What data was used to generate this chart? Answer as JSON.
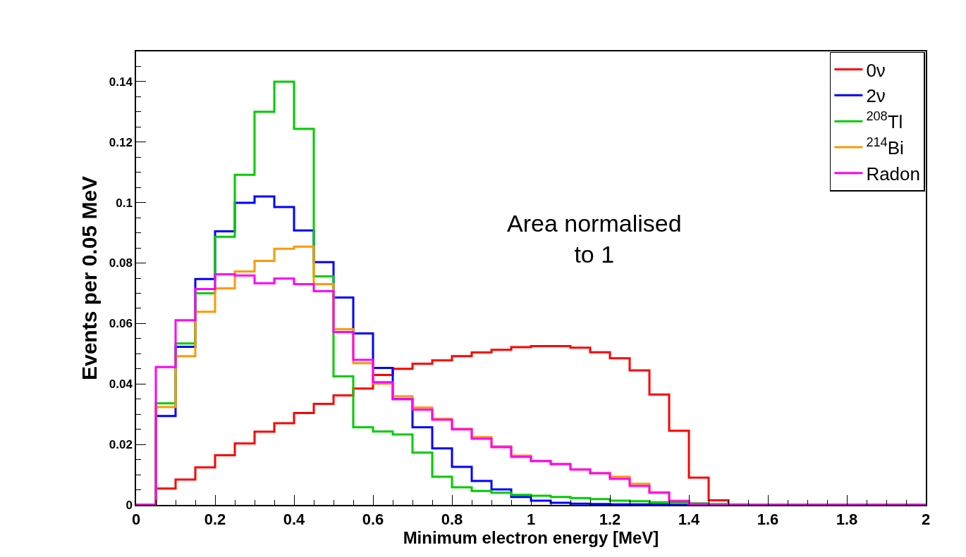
{
  "chart_data": {
    "type": "histogram",
    "xlabel": "Minimum electron energy [MeV]",
    "ylabel": "Events per 0.05 MeV",
    "annotations": [
      "Area normalised to 1"
    ],
    "bins": [
      0,
      0.05,
      0.1,
      0.15,
      0.2,
      0.25,
      0.3,
      0.35,
      0.4,
      0.45,
      0.5,
      0.55,
      0.6,
      0.65,
      0.7,
      0.75,
      0.8,
      0.85,
      0.9,
      0.95,
      1,
      1.05,
      1.1,
      1.15,
      1.2,
      1.25,
      1.3,
      1.35,
      1.4,
      1.45,
      1.5,
      1.55,
      1.6,
      1.65,
      1.7,
      1.75,
      1.8,
      1.85,
      1.9,
      1.95,
      2
    ],
    "series": [
      {
        "name": "0ν",
        "color": "#ff0000",
        "values": [
          0,
          0.0054,
          0.0084,
          0.0124,
          0.0164,
          0.0203,
          0.0242,
          0.027,
          0.0304,
          0.0334,
          0.0362,
          0.0385,
          0.043,
          0.045,
          0.0467,
          0.0478,
          0.0492,
          0.0504,
          0.0513,
          0.0522,
          0.0525,
          0.0525,
          0.052,
          0.0505,
          0.0485,
          0.0445,
          0.0365,
          0.0245,
          0.009,
          0.0015,
          0,
          0,
          0,
          0,
          0,
          0,
          0,
          0,
          0,
          0
        ]
      },
      {
        "name": "2ν",
        "color": "#0000ff",
        "values": [
          0,
          0.0294,
          0.0523,
          0.0747,
          0.0905,
          0.0999,
          0.102,
          0.0985,
          0.0908,
          0.0803,
          0.0686,
          0.0567,
          0.0453,
          0.035,
          0.0257,
          0.0187,
          0.0126,
          0.0079,
          0.0051,
          0.0026,
          0.0014,
          0.0007,
          0.0004,
          0.0003,
          0.0002,
          0.0002,
          0.0001,
          0,
          0,
          0,
          0,
          0,
          0,
          0,
          0,
          0,
          0,
          0,
          0,
          0
        ]
      },
      {
        "name": "$^{208}$Tl",
        "color": "#00cc00",
        "values": [
          0,
          0.0336,
          0.0534,
          0.07,
          0.0887,
          0.1092,
          0.13,
          0.14,
          0.1244,
          0.0756,
          0.0425,
          0.0257,
          0.0243,
          0.0233,
          0.0173,
          0.0093,
          0.0058,
          0.0046,
          0.004,
          0.0033,
          0.003,
          0.0026,
          0.0023,
          0.0019,
          0.0014,
          0.0012,
          0.0009,
          0.0007,
          0.0005,
          0.0003,
          0.0002,
          0,
          0,
          0,
          0,
          0,
          0,
          0,
          0,
          0
        ]
      },
      {
        "name": "$^{214}$Bi",
        "color": "#ff9900",
        "values": [
          0,
          0.0324,
          0.0492,
          0.0639,
          0.0716,
          0.0772,
          0.0807,
          0.0847,
          0.0854,
          0.073,
          0.0581,
          0.0469,
          0.0401,
          0.0359,
          0.0322,
          0.0285,
          0.0252,
          0.0224,
          0.0194,
          0.0163,
          0.0145,
          0.0135,
          0.0117,
          0.0105,
          0.0093,
          0.007,
          0.0042,
          0.0014,
          0.0003,
          0,
          0,
          0,
          0,
          0,
          0,
          0,
          0,
          0,
          0,
          0
        ]
      },
      {
        "name": "Radon",
        "color": "#ff00ff",
        "values": [
          0,
          0.0456,
          0.0611,
          0.0714,
          0.0763,
          0.0759,
          0.0733,
          0.0749,
          0.073,
          0.0707,
          0.0572,
          0.048,
          0.0406,
          0.035,
          0.0315,
          0.0282,
          0.025,
          0.0219,
          0.0191,
          0.0159,
          0.0145,
          0.0135,
          0.0117,
          0.0105,
          0.0086,
          0.0063,
          0.004,
          0.0012,
          0.0003,
          0,
          0,
          0,
          0,
          0,
          0,
          0,
          0,
          0,
          0,
          0
        ]
      }
    ],
    "xlim": [
      0,
      2
    ],
    "xticks": [
      0,
      0.2,
      0.4,
      0.6,
      0.8,
      1,
      1.2,
      1.4,
      1.6,
      1.8,
      2
    ],
    "ylim": [
      0,
      0.15
    ],
    "yticks": [
      0,
      0.02,
      0.04,
      0.06,
      0.08,
      0.1,
      0.12,
      0.14
    ],
    "legend": "top right",
    "line_style": "solid",
    "marker": "none"
  }
}
